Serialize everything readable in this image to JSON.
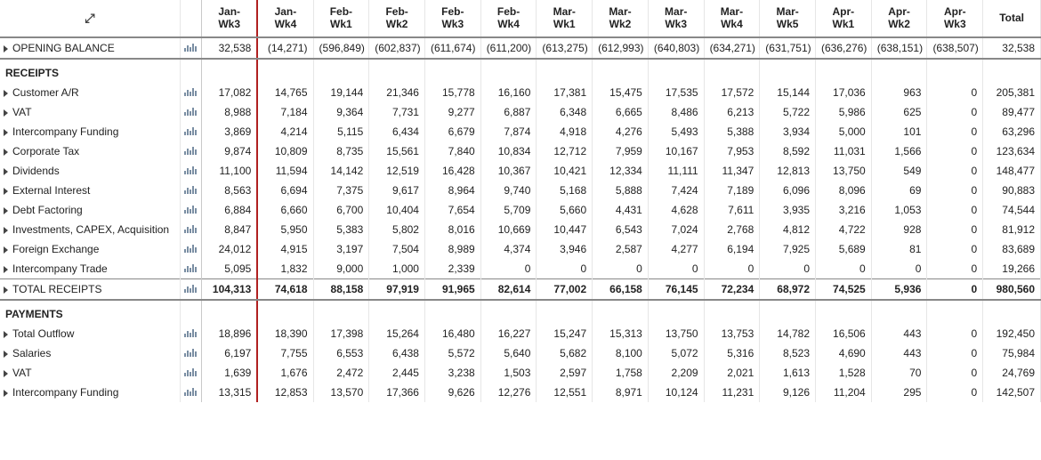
{
  "columns": [
    "Jan-\nWk3",
    "Jan-\nWk4",
    "Feb-\nWk1",
    "Feb-\nWk2",
    "Feb-\nWk3",
    "Feb-\nWk4",
    "Mar-\nWk1",
    "Mar-\nWk2",
    "Mar-\nWk3",
    "Mar-\nWk4",
    "Mar-\nWk5",
    "Apr-\nWk1",
    "Apr-\nWk2",
    "Apr-\nWk3",
    "Total"
  ],
  "redline_after_col_index": 0,
  "sections": [
    {
      "kind": "opening",
      "label": "OPENING BALANCE",
      "values": [
        "32,538",
        "(14,271)",
        "(596,849)",
        "(602,837)",
        "(611,674)",
        "(611,200)",
        "(613,275)",
        "(612,993)",
        "(640,803)",
        "(634,271)",
        "(631,751)",
        "(636,276)",
        "(638,151)",
        "(638,507)",
        "32,538"
      ]
    },
    {
      "kind": "section",
      "label": "RECEIPTS",
      "rows": [
        {
          "label": "Customer A/R",
          "values": [
            "17,082",
            "14,765",
            "19,144",
            "21,346",
            "15,778",
            "16,160",
            "17,381",
            "15,475",
            "17,535",
            "17,572",
            "15,144",
            "17,036",
            "963",
            "0",
            "205,381"
          ]
        },
        {
          "label": "VAT",
          "values": [
            "8,988",
            "7,184",
            "9,364",
            "7,731",
            "9,277",
            "6,887",
            "6,348",
            "6,665",
            "8,486",
            "6,213",
            "5,722",
            "5,986",
            "625",
            "0",
            "89,477"
          ]
        },
        {
          "label": "Intercompany Funding",
          "values": [
            "3,869",
            "4,214",
            "5,115",
            "6,434",
            "6,679",
            "7,874",
            "4,918",
            "4,276",
            "5,493",
            "5,388",
            "3,934",
            "5,000",
            "101",
            "0",
            "63,296"
          ]
        },
        {
          "label": "Corporate Tax",
          "values": [
            "9,874",
            "10,809",
            "8,735",
            "15,561",
            "7,840",
            "10,834",
            "12,712",
            "7,959",
            "10,167",
            "7,953",
            "8,592",
            "11,031",
            "1,566",
            "0",
            "123,634"
          ]
        },
        {
          "label": "Dividends",
          "values": [
            "11,100",
            "11,594",
            "14,142",
            "12,519",
            "16,428",
            "10,367",
            "10,421",
            "12,334",
            "11,111",
            "11,347",
            "12,813",
            "13,750",
            "549",
            "0",
            "148,477"
          ]
        },
        {
          "label": "External Interest",
          "values": [
            "8,563",
            "6,694",
            "7,375",
            "9,617",
            "8,964",
            "9,740",
            "5,168",
            "5,888",
            "7,424",
            "7,189",
            "6,096",
            "8,096",
            "69",
            "0",
            "90,883"
          ]
        },
        {
          "label": "Debt Factoring",
          "values": [
            "6,884",
            "6,660",
            "6,700",
            "10,404",
            "7,654",
            "5,709",
            "5,660",
            "4,431",
            "4,628",
            "7,611",
            "3,935",
            "3,216",
            "1,053",
            "0",
            "74,544"
          ]
        },
        {
          "label": "Investments, CAPEX, Acquisition",
          "values": [
            "8,847",
            "5,950",
            "5,383",
            "5,802",
            "8,016",
            "10,669",
            "10,447",
            "6,543",
            "7,024",
            "2,768",
            "4,812",
            "4,722",
            "928",
            "0",
            "81,912"
          ]
        },
        {
          "label": "Foreign Exchange",
          "values": [
            "24,012",
            "4,915",
            "3,197",
            "7,504",
            "8,989",
            "4,374",
            "3,946",
            "2,587",
            "4,277",
            "6,194",
            "7,925",
            "5,689",
            "81",
            "0",
            "83,689"
          ]
        },
        {
          "label": "Intercompany Trade",
          "values": [
            "5,095",
            "1,832",
            "9,000",
            "1,000",
            "2,339",
            "0",
            "0",
            "0",
            "0",
            "0",
            "0",
            "0",
            "0",
            "0",
            "19,266"
          ]
        }
      ],
      "total": {
        "label": "TOTAL RECEIPTS",
        "values": [
          "104,313",
          "74,618",
          "88,158",
          "97,919",
          "91,965",
          "82,614",
          "77,002",
          "66,158",
          "76,145",
          "72,234",
          "68,972",
          "74,525",
          "5,936",
          "0",
          "980,560"
        ]
      }
    },
    {
      "kind": "section",
      "label": "PAYMENTS",
      "rows": [
        {
          "label": "Total Outflow",
          "values": [
            "18,896",
            "18,390",
            "17,398",
            "15,264",
            "16,480",
            "16,227",
            "15,247",
            "15,313",
            "13,750",
            "13,753",
            "14,782",
            "16,506",
            "443",
            "0",
            "192,450"
          ]
        },
        {
          "label": "Salaries",
          "values": [
            "6,197",
            "7,755",
            "6,553",
            "6,438",
            "5,572",
            "5,640",
            "5,682",
            "8,100",
            "5,072",
            "5,316",
            "8,523",
            "4,690",
            "443",
            "0",
            "75,984"
          ]
        },
        {
          "label": "VAT",
          "values": [
            "1,639",
            "1,676",
            "2,472",
            "2,445",
            "3,238",
            "1,503",
            "2,597",
            "1,758",
            "2,209",
            "2,021",
            "1,613",
            "1,528",
            "70",
            "0",
            "24,769"
          ]
        },
        {
          "label": "Intercompany Funding",
          "values": [
            "13,315",
            "12,853",
            "13,570",
            "17,366",
            "9,626",
            "12,276",
            "12,551",
            "8,971",
            "10,124",
            "11,231",
            "9,126",
            "11,204",
            "295",
            "0",
            "142,507"
          ]
        }
      ]
    }
  ]
}
